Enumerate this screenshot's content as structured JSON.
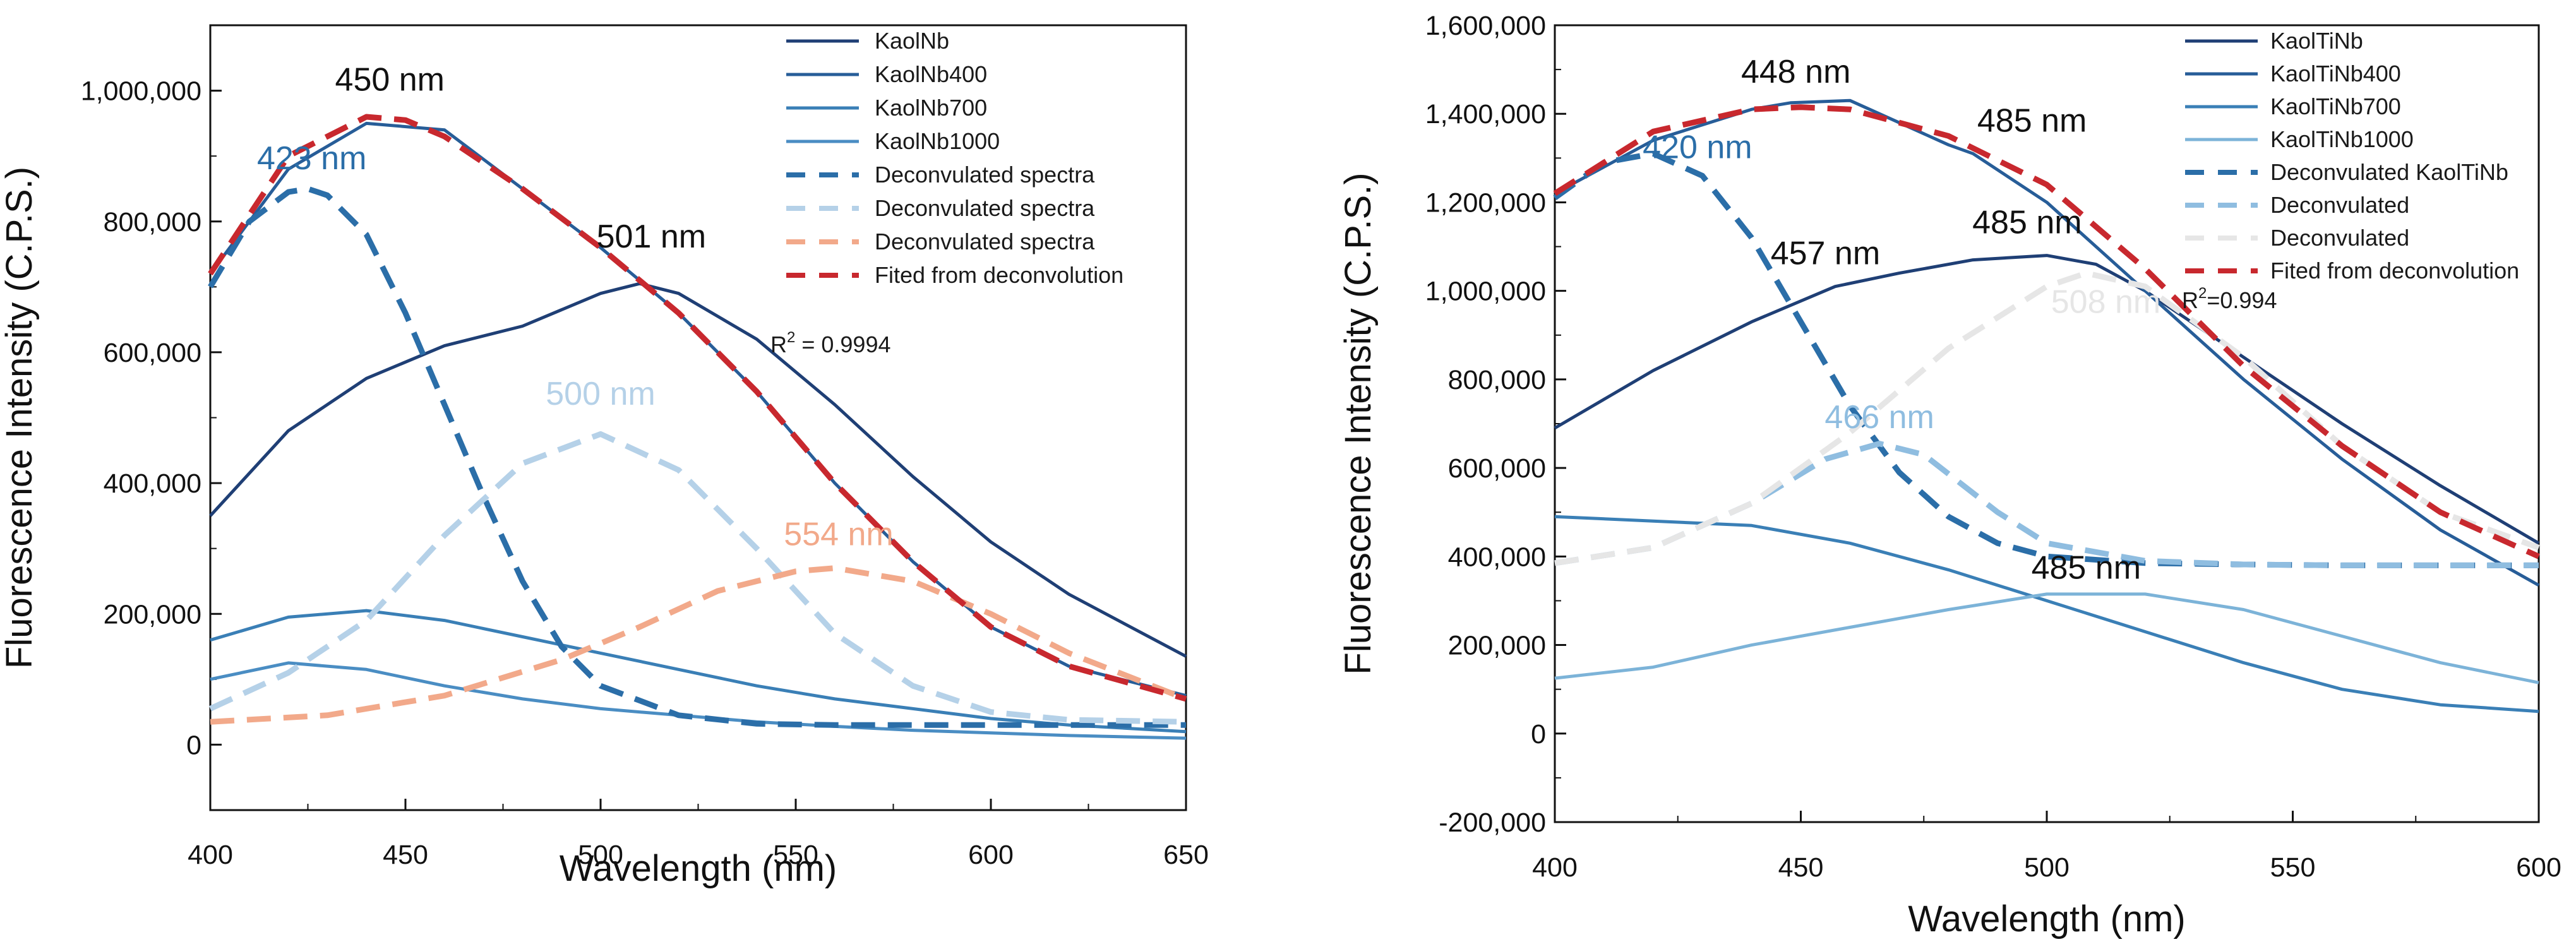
{
  "chart_data": [
    {
      "type": "line",
      "xlabel": "Wavelength (nm)",
      "ylabel": "Fluorescence Intensity (C.P.S.)",
      "xlim": [
        400,
        650
      ],
      "ylim": [
        -100000,
        1100000
      ],
      "xticks": [
        400,
        450,
        500,
        550,
        600,
        650
      ],
      "xtick_labels": [
        "400",
        "450",
        "500",
        "550",
        "600",
        "650"
      ],
      "yticks": [
        0,
        200000,
        400000,
        600000,
        800000,
        1000000
      ],
      "ytick_labels": [
        "0",
        "200,000",
        "400,000",
        "600,000",
        "800,000",
        "1,000,000"
      ],
      "legend_position": "top-right",
      "series": [
        {
          "name": "KaolNb",
          "style": "solid",
          "color": "#1f3f75",
          "x": [
            400,
            420,
            440,
            460,
            480,
            500,
            510,
            520,
            540,
            560,
            580,
            600,
            620,
            650
          ],
          "y": [
            350000,
            480000,
            560000,
            610000,
            640000,
            690000,
            705000,
            690000,
            620000,
            520000,
            410000,
            310000,
            230000,
            135000
          ]
        },
        {
          "name": "KaolNb400",
          "style": "solid",
          "color": "#275d98",
          "x": [
            400,
            420,
            440,
            460,
            480,
            500,
            520,
            540,
            560,
            580,
            600,
            620,
            650
          ],
          "y": [
            720000,
            880000,
            950000,
            940000,
            850000,
            760000,
            660000,
            540000,
            400000,
            280000,
            180000,
            120000,
            75000
          ]
        },
        {
          "name": "KaolNb700",
          "style": "solid",
          "color": "#3a7fb6",
          "x": [
            400,
            420,
            440,
            460,
            480,
            500,
            520,
            540,
            560,
            580,
            600,
            620,
            650
          ],
          "y": [
            160000,
            195000,
            205000,
            190000,
            165000,
            140000,
            115000,
            90000,
            70000,
            55000,
            40000,
            30000,
            20000
          ]
        },
        {
          "name": "KaolNb1000",
          "style": "solid",
          "color": "#4a8dc3",
          "x": [
            400,
            420,
            440,
            460,
            480,
            500,
            520,
            540,
            560,
            580,
            600,
            620,
            650
          ],
          "y": [
            100000,
            125000,
            115000,
            90000,
            70000,
            55000,
            45000,
            35000,
            28000,
            22000,
            18000,
            14000,
            10000
          ]
        },
        {
          "name": "Deconvulated spectra",
          "style": "dashed",
          "color": "#2b6ea8",
          "x": [
            400,
            410,
            420,
            425,
            430,
            440,
            450,
            460,
            470,
            480,
            490,
            500,
            520,
            540,
            560,
            600,
            650
          ],
          "y": [
            700000,
            800000,
            845000,
            850000,
            840000,
            780000,
            660000,
            520000,
            380000,
            250000,
            150000,
            90000,
            45000,
            32000,
            30000,
            30000,
            30000
          ]
        },
        {
          "name": "Deconvulated spectra",
          "style": "dashed",
          "color": "#b5d1e8",
          "x": [
            400,
            420,
            440,
            460,
            480,
            500,
            520,
            540,
            560,
            580,
            600,
            620,
            650
          ],
          "y": [
            55000,
            110000,
            190000,
            320000,
            430000,
            475000,
            420000,
            300000,
            170000,
            90000,
            50000,
            38000,
            35000
          ]
        },
        {
          "name": "Deconvulated spectra",
          "style": "dashed",
          "color": "#f2a98a",
          "x": [
            400,
            430,
            460,
            490,
            510,
            530,
            550,
            560,
            580,
            600,
            620,
            650
          ],
          "y": [
            35000,
            45000,
            75000,
            130000,
            180000,
            235000,
            265000,
            270000,
            250000,
            200000,
            140000,
            70000
          ]
        },
        {
          "name": "Fited from deconvolution",
          "style": "dashed",
          "color": "#c8282e",
          "x": [
            400,
            420,
            440,
            450,
            460,
            480,
            500,
            520,
            540,
            560,
            580,
            600,
            620,
            650
          ],
          "y": [
            720000,
            900000,
            960000,
            955000,
            930000,
            850000,
            760000,
            660000,
            540000,
            400000,
            280000,
            180000,
            120000,
            70000
          ]
        }
      ],
      "annotations": [
        {
          "text": "450 nm",
          "x": 446,
          "y": 1000000,
          "color": "#111111"
        },
        {
          "text": "423 nm",
          "x": 426,
          "y": 880000,
          "color": "#2b6ea8"
        },
        {
          "text": "501 nm",
          "x": 513,
          "y": 760000,
          "color": "#111111"
        },
        {
          "text": "500 nm",
          "x": 500,
          "y": 520000,
          "color": "#b5d1e8"
        },
        {
          "text": "554 nm",
          "x": 561,
          "y": 305000,
          "color": "#f2a98a"
        }
      ],
      "r2_prefix": "R",
      "r2_sup": "2",
      "r2_value": " = 0.9994"
    },
    {
      "type": "line",
      "xlabel": "Wavelength (nm)",
      "ylabel": "Fluorescence Intensity (C.P.S.)",
      "xlim": [
        400,
        600
      ],
      "ylim": [
        -200000,
        1600000
      ],
      "xticks": [
        400,
        450,
        500,
        550,
        600
      ],
      "xtick_labels": [
        "400",
        "450",
        "500",
        "550",
        "600"
      ],
      "yticks": [
        -200000,
        0,
        200000,
        400000,
        600000,
        800000,
        1000000,
        1200000,
        1400000,
        1600000
      ],
      "ytick_labels": [
        "-200,000",
        "0",
        "200,000",
        "400,000",
        "600,000",
        "800,000",
        "1,000,000",
        "1,200,000",
        "1,400,000",
        "1,600,000"
      ],
      "legend_position": "top-right",
      "series": [
        {
          "name": "KaolTiNb",
          "style": "solid",
          "color": "#1f3f75",
          "x": [
            400,
            420,
            440,
            457,
            470,
            485,
            500,
            510,
            520,
            540,
            560,
            580,
            600
          ],
          "y": [
            690000,
            820000,
            930000,
            1010000,
            1040000,
            1070000,
            1080000,
            1060000,
            1000000,
            850000,
            700000,
            560000,
            430000
          ]
        },
        {
          "name": "KaolTiNb400",
          "style": "solid",
          "color": "#275d98",
          "x": [
            400,
            420,
            440,
            448,
            460,
            480,
            485,
            500,
            520,
            540,
            560,
            580,
            600
          ],
          "y": [
            1220000,
            1340000,
            1410000,
            1425000,
            1430000,
            1330000,
            1310000,
            1200000,
            1000000,
            800000,
            620000,
            460000,
            335000
          ]
        },
        {
          "name": "KaolTiNb700",
          "style": "solid",
          "color": "#3a7fb6",
          "x": [
            400,
            420,
            440,
            460,
            480,
            500,
            520,
            540,
            560,
            580,
            600
          ],
          "y": [
            490000,
            480000,
            470000,
            430000,
            370000,
            300000,
            230000,
            160000,
            100000,
            65000,
            50000
          ]
        },
        {
          "name": "KaolTiNb1000",
          "style": "solid",
          "color": "#7cb3d8",
          "x": [
            400,
            420,
            440,
            460,
            480,
            500,
            520,
            540,
            560,
            580,
            600
          ],
          "y": [
            125000,
            150000,
            200000,
            240000,
            280000,
            315000,
            315000,
            280000,
            220000,
            160000,
            115000
          ]
        },
        {
          "name": "Deconvulated KaolTiNb",
          "style": "dashed",
          "color": "#2b6ea8",
          "x": [
            400,
            410,
            420,
            430,
            440,
            450,
            460,
            470,
            480,
            490,
            500,
            520,
            540,
            560,
            600
          ],
          "y": [
            1210000,
            1290000,
            1310000,
            1260000,
            1120000,
            930000,
            740000,
            590000,
            490000,
            430000,
            400000,
            385000,
            382000,
            380000,
            380000
          ]
        },
        {
          "name": "Deconvulated",
          "style": "dashed",
          "color": "#8fbde0",
          "x": [
            400,
            420,
            440,
            455,
            466,
            475,
            490,
            500,
            520,
            540,
            560,
            600
          ],
          "y": [
            385000,
            420000,
            520000,
            620000,
            655000,
            630000,
            500000,
            430000,
            390000,
            382000,
            380000,
            380000
          ]
        },
        {
          "name": "Deconvulated",
          "style": "dashed",
          "color": "#e6e6e6",
          "x": [
            400,
            420,
            440,
            460,
            480,
            500,
            508,
            520,
            540,
            560,
            580,
            600
          ],
          "y": [
            385000,
            420000,
            520000,
            680000,
            870000,
            1010000,
            1040000,
            1010000,
            850000,
            650000,
            500000,
            420000
          ]
        },
        {
          "name": "Fited from deconvolution",
          "style": "dashed",
          "color": "#c8282e",
          "x": [
            400,
            420,
            440,
            450,
            460,
            480,
            500,
            520,
            540,
            560,
            580,
            600
          ],
          "y": [
            1220000,
            1360000,
            1410000,
            1415000,
            1410000,
            1350000,
            1240000,
            1050000,
            830000,
            650000,
            500000,
            400000
          ]
        }
      ],
      "annotations": [
        {
          "text": "448 nm",
          "x": 449,
          "y": 1470000,
          "color": "#111111"
        },
        {
          "text": "485 nm",
          "x": 497,
          "y": 1360000,
          "color": "#111111"
        },
        {
          "text": "420 nm",
          "x": 429,
          "y": 1300000,
          "color": "#2b6ea8"
        },
        {
          "text": "485 nm",
          "x": 496,
          "y": 1130000,
          "color": "#111111"
        },
        {
          "text": "457 nm",
          "x": 455,
          "y": 1060000,
          "color": "#111111"
        },
        {
          "text": "508 nm",
          "x": 512,
          "y": 950000,
          "color": "#e6e6e6"
        },
        {
          "text": "466 nm",
          "x": 466,
          "y": 690000,
          "color": "#8fbde0"
        },
        {
          "text": "485 nm",
          "x": 508,
          "y": 350000,
          "color": "#111111"
        }
      ],
      "r2_prefix": "R",
      "r2_sup": "2",
      "r2_value": "=0.994"
    }
  ]
}
